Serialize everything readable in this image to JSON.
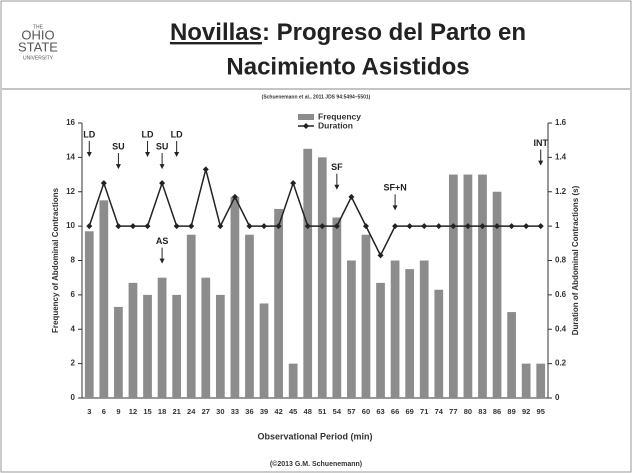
{
  "slide": {
    "logo": [
      "THE",
      "OHIO",
      "STATE",
      "UNIVERSITY"
    ],
    "title_underlined": "Novillas",
    "title_rest": ": Progreso del Parto en",
    "title_line2": "Nacimiento Asistidos",
    "citation": "(Schuenemann et al., 2011 JDS 94:5494–5501)",
    "footer": "(©2013 G.M. Schuenemann)"
  },
  "chart_data": {
    "type": "bar_line",
    "categories": [
      "3",
      "6",
      "9",
      "12",
      "15",
      "18",
      "21",
      "24",
      "27",
      "30",
      "33",
      "36",
      "39",
      "42",
      "45",
      "48",
      "51",
      "54",
      "57",
      "60",
      "63",
      "66",
      "69",
      "71",
      "74",
      "77",
      "80",
      "83",
      "86",
      "89",
      "92",
      "95"
    ],
    "series": [
      {
        "name": "Frequency",
        "type": "bar",
        "color": "#8c8c8c",
        "axis": "y",
        "values": [
          9.7,
          11.5,
          5.3,
          6.7,
          6,
          7,
          6,
          9.5,
          7,
          6,
          11.7,
          9.5,
          5.5,
          11,
          2,
          14.5,
          14,
          10.5,
          8,
          9.5,
          6.7,
          8,
          7.5,
          8,
          6.3,
          13,
          13,
          13,
          12,
          5,
          2,
          2
        ]
      },
      {
        "name": "Duration",
        "type": "line",
        "color": "#222222",
        "axis": "y2",
        "values": [
          1,
          1.25,
          1,
          1,
          1,
          1.25,
          1,
          1,
          1.33,
          1,
          1.17,
          1,
          1,
          1,
          1.25,
          1,
          1,
          1,
          1.17,
          1,
          0.83,
          1,
          1,
          1,
          1,
          1,
          1,
          1,
          1,
          1,
          1,
          1
        ]
      }
    ],
    "xlabel": "Observational Period (min)",
    "ylabel": "Frequency of Abdominal Contractions",
    "y2label": "Duration of Abdominal Contractions (s)",
    "ylim": [
      0,
      16
    ],
    "yticks": [
      0,
      2,
      4,
      6,
      8,
      10,
      12,
      14,
      16
    ],
    "y2lim": [
      0,
      1.6
    ],
    "y2ticks": [
      0,
      0.2,
      0.4,
      0.6,
      0.8,
      1,
      1.2,
      1.4,
      1.6
    ],
    "legend": "top",
    "grid": false,
    "annotations": [
      {
        "text": "LD",
        "x": "3",
        "y": 15.3
      },
      {
        "text": "SU",
        "x": "9",
        "y": 14.6
      },
      {
        "text": "LD",
        "x": "15",
        "y": 15.3
      },
      {
        "text": "SU",
        "x": "18",
        "y": 14.6
      },
      {
        "text": "LD",
        "x": "21",
        "y": 15.3
      },
      {
        "text": "AS",
        "x": "18",
        "y": 9.1
      },
      {
        "text": "SF",
        "x": "54",
        "y": 13.4
      },
      {
        "text": "SF+N",
        "x": "66",
        "y": 12.2
      },
      {
        "text": "INT",
        "x": "95",
        "y": 14.8
      }
    ]
  }
}
